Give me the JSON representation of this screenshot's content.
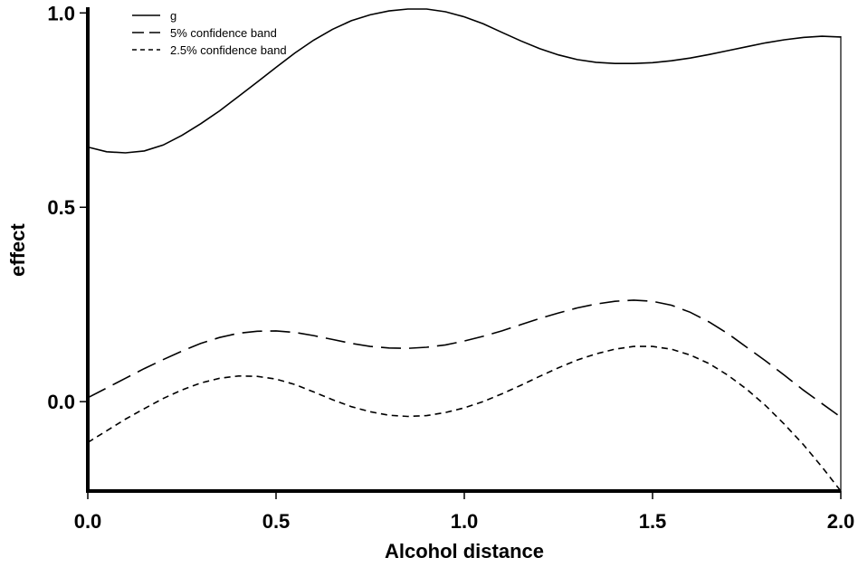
{
  "chart_data": {
    "type": "line",
    "title": "",
    "xlabel": "Alcohol distance",
    "ylabel": "effect",
    "xlim": [
      0.0,
      2.0
    ],
    "ylim": [
      -0.23,
      1.01
    ],
    "xticks": [
      0.0,
      0.5,
      1.0,
      1.5,
      2.0
    ],
    "xtick_labels": [
      "0.0",
      "0.5",
      "1.0",
      "1.5",
      "2.0"
    ],
    "yticks": [
      0.0,
      0.5,
      1.0
    ],
    "ytick_labels": [
      "0.0",
      "0.5",
      "1.0"
    ],
    "grid": false,
    "legend_position": "top-left",
    "series": [
      {
        "name": "g",
        "style": "solid",
        "x": [
          0.0,
          0.05,
          0.1,
          0.15,
          0.2,
          0.25,
          0.3,
          0.35,
          0.4,
          0.45,
          0.5,
          0.55,
          0.6,
          0.65,
          0.7,
          0.75,
          0.8,
          0.85,
          0.9,
          0.95,
          1.0,
          1.05,
          1.1,
          1.15,
          1.2,
          1.25,
          1.3,
          1.35,
          1.4,
          1.45,
          1.5,
          1.55,
          1.6,
          1.65,
          1.7,
          1.75,
          1.8,
          1.85,
          1.9,
          1.95,
          2.0
        ],
        "y": [
          0.655,
          0.643,
          0.64,
          0.645,
          0.66,
          0.685,
          0.715,
          0.748,
          0.785,
          0.822,
          0.86,
          0.897,
          0.93,
          0.958,
          0.98,
          0.995,
          1.005,
          1.01,
          1.01,
          1.003,
          0.99,
          0.972,
          0.95,
          0.928,
          0.908,
          0.892,
          0.88,
          0.873,
          0.87,
          0.87,
          0.872,
          0.877,
          0.884,
          0.893,
          0.903,
          0.913,
          0.923,
          0.931,
          0.937,
          0.94,
          0.938
        ]
      },
      {
        "name": "5% confidence band",
        "style": "long-dash",
        "x": [
          0.0,
          0.05,
          0.1,
          0.15,
          0.2,
          0.25,
          0.3,
          0.35,
          0.4,
          0.45,
          0.5,
          0.55,
          0.6,
          0.65,
          0.7,
          0.75,
          0.8,
          0.85,
          0.9,
          0.95,
          1.0,
          1.05,
          1.1,
          1.15,
          1.2,
          1.25,
          1.3,
          1.35,
          1.4,
          1.45,
          1.5,
          1.55,
          1.6,
          1.65,
          1.7,
          1.75,
          1.8,
          1.85,
          1.9,
          1.95,
          2.0
        ],
        "y": [
          0.01,
          0.035,
          0.06,
          0.085,
          0.108,
          0.13,
          0.15,
          0.165,
          0.176,
          0.181,
          0.182,
          0.178,
          0.17,
          0.16,
          0.15,
          0.142,
          0.138,
          0.137,
          0.14,
          0.146,
          0.156,
          0.168,
          0.182,
          0.198,
          0.214,
          0.228,
          0.241,
          0.251,
          0.258,
          0.261,
          0.258,
          0.248,
          0.23,
          0.205,
          0.175,
          0.14,
          0.105,
          0.068,
          0.03,
          -0.005,
          -0.04
        ]
      },
      {
        "name": "2.5% confidence band",
        "style": "short-dash",
        "x": [
          0.0,
          0.05,
          0.1,
          0.15,
          0.2,
          0.25,
          0.3,
          0.35,
          0.4,
          0.45,
          0.5,
          0.55,
          0.6,
          0.65,
          0.7,
          0.75,
          0.8,
          0.85,
          0.9,
          0.95,
          1.0,
          1.05,
          1.1,
          1.15,
          1.2,
          1.25,
          1.3,
          1.35,
          1.4,
          1.45,
          1.5,
          1.55,
          1.6,
          1.65,
          1.7,
          1.75,
          1.8,
          1.85,
          1.9,
          1.95,
          2.0
        ],
        "y": [
          -0.105,
          -0.075,
          -0.045,
          -0.018,
          0.008,
          0.03,
          0.048,
          0.06,
          0.066,
          0.065,
          0.058,
          0.044,
          0.025,
          0.005,
          -0.013,
          -0.026,
          -0.035,
          -0.038,
          -0.036,
          -0.028,
          -0.016,
          0.0,
          0.02,
          0.042,
          0.065,
          0.087,
          0.107,
          0.123,
          0.135,
          0.142,
          0.142,
          0.135,
          0.12,
          0.098,
          0.068,
          0.032,
          -0.01,
          -0.058,
          -0.11,
          -0.168,
          -0.23
        ]
      }
    ]
  }
}
